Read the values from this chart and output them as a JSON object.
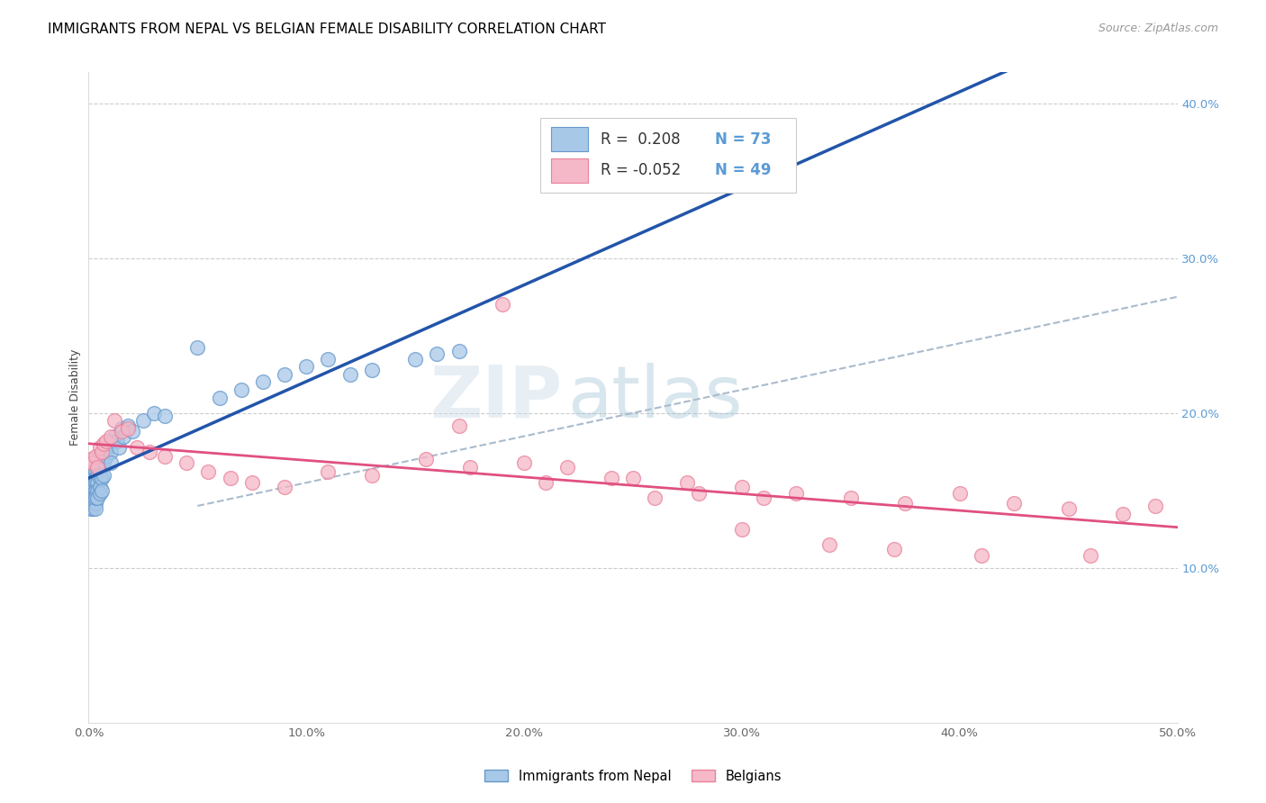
{
  "title": "IMMIGRANTS FROM NEPAL VS BELGIAN FEMALE DISABILITY CORRELATION CHART",
  "source": "Source: ZipAtlas.com",
  "ylabel": "Female Disability",
  "xlim": [
    0.0,
    0.5
  ],
  "ylim": [
    0.0,
    0.42
  ],
  "xticks": [
    0.0,
    0.1,
    0.2,
    0.3,
    0.4,
    0.5
  ],
  "yticks_right": [
    0.1,
    0.2,
    0.3,
    0.4
  ],
  "watermark": "ZIPatlas",
  "blue_scatter_color": "#a8c8e8",
  "blue_edge_color": "#6699cc",
  "pink_scatter_color": "#f5b8c8",
  "pink_edge_color": "#e8829a",
  "blue_line_color": "#2255aa",
  "pink_line_color": "#e05080",
  "trendline_dashed_color": "#aabbcc",
  "nepal_x": [
    0.001,
    0.001,
    0.001,
    0.001,
    0.001,
    0.001,
    0.001,
    0.001,
    0.001,
    0.001,
    0.002,
    0.002,
    0.002,
    0.002,
    0.002,
    0.002,
    0.002,
    0.002,
    0.002,
    0.002,
    0.003,
    0.003,
    0.003,
    0.003,
    0.003,
    0.003,
    0.003,
    0.003,
    0.004,
    0.004,
    0.004,
    0.004,
    0.004,
    0.004,
    0.005,
    0.005,
    0.005,
    0.005,
    0.005,
    0.006,
    0.006,
    0.006,
    0.006,
    0.007,
    0.007,
    0.007,
    0.008,
    0.008,
    0.01,
    0.01,
    0.01,
    0.012,
    0.013,
    0.014,
    0.015,
    0.016,
    0.018,
    0.02,
    0.025,
    0.03,
    0.035,
    0.05,
    0.06,
    0.07,
    0.08,
    0.09,
    0.1,
    0.11,
    0.12,
    0.13,
    0.15,
    0.16,
    0.17
  ],
  "nepal_y": [
    0.155,
    0.15,
    0.145,
    0.14,
    0.138,
    0.148,
    0.152,
    0.143,
    0.147,
    0.153,
    0.162,
    0.158,
    0.155,
    0.15,
    0.148,
    0.145,
    0.142,
    0.138,
    0.16,
    0.165,
    0.162,
    0.158,
    0.155,
    0.15,
    0.147,
    0.142,
    0.138,
    0.145,
    0.165,
    0.16,
    0.155,
    0.15,
    0.145,
    0.17,
    0.168,
    0.163,
    0.158,
    0.152,
    0.148,
    0.17,
    0.165,
    0.158,
    0.15,
    0.175,
    0.168,
    0.16,
    0.178,
    0.172,
    0.182,
    0.175,
    0.168,
    0.185,
    0.182,
    0.178,
    0.19,
    0.185,
    0.192,
    0.188,
    0.195,
    0.2,
    0.198,
    0.242,
    0.21,
    0.215,
    0.22,
    0.225,
    0.23,
    0.235,
    0.225,
    0.228,
    0.235,
    0.238,
    0.24
  ],
  "belgian_x": [
    0.001,
    0.002,
    0.003,
    0.004,
    0.005,
    0.006,
    0.007,
    0.008,
    0.01,
    0.012,
    0.015,
    0.018,
    0.022,
    0.028,
    0.035,
    0.045,
    0.055,
    0.065,
    0.075,
    0.09,
    0.11,
    0.13,
    0.155,
    0.175,
    0.2,
    0.22,
    0.25,
    0.275,
    0.3,
    0.325,
    0.35,
    0.375,
    0.4,
    0.425,
    0.45,
    0.475,
    0.49,
    0.17,
    0.19,
    0.21,
    0.24,
    0.26,
    0.28,
    0.31,
    0.34,
    0.37,
    0.3,
    0.41,
    0.46
  ],
  "belgian_y": [
    0.17,
    0.168,
    0.172,
    0.165,
    0.178,
    0.175,
    0.18,
    0.182,
    0.185,
    0.195,
    0.188,
    0.19,
    0.178,
    0.175,
    0.172,
    0.168,
    0.162,
    0.158,
    0.155,
    0.152,
    0.162,
    0.16,
    0.17,
    0.165,
    0.168,
    0.165,
    0.158,
    0.155,
    0.152,
    0.148,
    0.145,
    0.142,
    0.148,
    0.142,
    0.138,
    0.135,
    0.14,
    0.192,
    0.27,
    0.155,
    0.158,
    0.145,
    0.148,
    0.145,
    0.115,
    0.112,
    0.125,
    0.108,
    0.108
  ],
  "title_fontsize": 11,
  "axis_label_fontsize": 9,
  "tick_fontsize": 9.5,
  "legend_fontsize": 11,
  "source_fontsize": 9
}
